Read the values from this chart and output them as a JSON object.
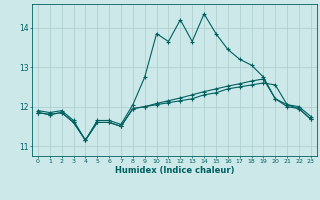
{
  "xlabel": "Humidex (Indice chaleur)",
  "bg_color": "#cce8e8",
  "grid_color": "#aacccc",
  "line_color": "#006060",
  "xlim": [
    -0.5,
    23.5
  ],
  "ylim": [
    10.75,
    14.6
  ],
  "yticks": [
    11,
    12,
    13,
    14
  ],
  "xticks": [
    0,
    1,
    2,
    3,
    4,
    5,
    6,
    7,
    8,
    9,
    10,
    11,
    12,
    13,
    14,
    15,
    16,
    17,
    18,
    19,
    20,
    21,
    22,
    23
  ],
  "line1_x": [
    0,
    1,
    2,
    3,
    4,
    5,
    6,
    7,
    8,
    9,
    10,
    11,
    12,
    13,
    14,
    15,
    16,
    17,
    18,
    19,
    20,
    21,
    22,
    23
  ],
  "line1_y": [
    11.9,
    11.85,
    11.9,
    11.65,
    11.15,
    11.65,
    11.65,
    11.55,
    12.05,
    12.75,
    13.85,
    13.65,
    14.2,
    13.65,
    14.35,
    13.85,
    13.45,
    13.2,
    13.05,
    12.75,
    12.2,
    12.05,
    12.0,
    11.75
  ],
  "line2_x": [
    0,
    1,
    2,
    3,
    4,
    5,
    6,
    7,
    8,
    9,
    10,
    11,
    12,
    13,
    14,
    15,
    16,
    17,
    18,
    19,
    20,
    21,
    22,
    23
  ],
  "line2_y": [
    11.85,
    11.8,
    11.85,
    11.6,
    11.15,
    11.6,
    11.6,
    11.5,
    11.95,
    12.0,
    12.05,
    12.1,
    12.15,
    12.2,
    12.3,
    12.35,
    12.45,
    12.5,
    12.55,
    12.6,
    12.55,
    12.05,
    11.95,
    11.68
  ],
  "line3_x": [
    0,
    1,
    2,
    3,
    4,
    5,
    6,
    7,
    8,
    9,
    10,
    11,
    12,
    13,
    14,
    15,
    16,
    17,
    18,
    19,
    20,
    21,
    22,
    23
  ],
  "line3_y": [
    11.85,
    11.8,
    11.85,
    11.6,
    11.15,
    11.6,
    11.6,
    11.5,
    11.95,
    12.0,
    12.08,
    12.15,
    12.22,
    12.3,
    12.38,
    12.45,
    12.52,
    12.58,
    12.65,
    12.7,
    12.2,
    12.0,
    11.95,
    11.68
  ]
}
